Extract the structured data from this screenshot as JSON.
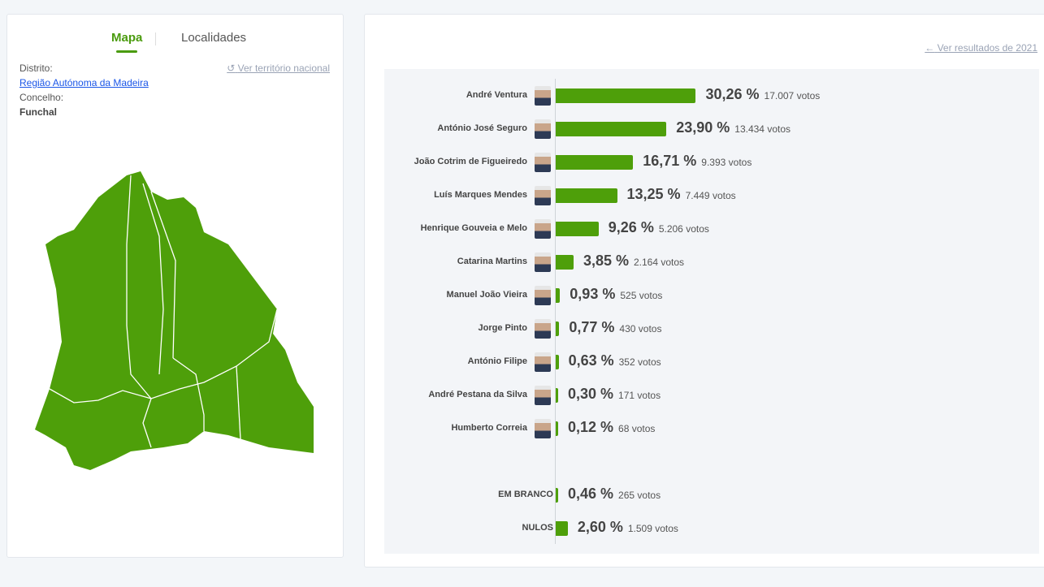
{
  "tabs": {
    "map": "Mapa",
    "localities": "Localidades"
  },
  "location": {
    "district_label": "Distrito:",
    "district": "Região Autónoma da Madeira",
    "municipality_label": "Concelho:",
    "municipality": "Funchal",
    "national_link": "Ver território nacional"
  },
  "results_link": "Ver resultados de 2021",
  "accent": "#4e9f0a",
  "results": [
    {
      "name": "André Ventura",
      "pct": "30,26 %",
      "value": 30.26,
      "votes": "17.007 votos"
    },
    {
      "name": "António José Seguro",
      "pct": "23,90 %",
      "value": 23.9,
      "votes": "13.434 votos"
    },
    {
      "name": "João Cotrim de Figueiredo",
      "pct": "16,71 %",
      "value": 16.71,
      "votes": "9.393 votos"
    },
    {
      "name": "Luís Marques Mendes",
      "pct": "13,25 %",
      "value": 13.25,
      "votes": "7.449 votos"
    },
    {
      "name": "Henrique Gouveia e Melo",
      "pct": "9,26 %",
      "value": 9.26,
      "votes": "5.206 votos"
    },
    {
      "name": "Catarina Martins",
      "pct": "3,85 %",
      "value": 3.85,
      "votes": "2.164 votos"
    },
    {
      "name": "Manuel João Vieira",
      "pct": "0,93 %",
      "value": 0.93,
      "votes": "525 votos"
    },
    {
      "name": "Jorge Pinto",
      "pct": "0,77 %",
      "value": 0.77,
      "votes": "430 votos"
    },
    {
      "name": "António Filipe",
      "pct": "0,63 %",
      "value": 0.63,
      "votes": "352 votos"
    },
    {
      "name": "André Pestana da Silva",
      "pct": "0,30 %",
      "value": 0.3,
      "votes": "171 votos"
    },
    {
      "name": "Humberto Correia",
      "pct": "0,12 %",
      "value": 0.12,
      "votes": "68 votos"
    }
  ],
  "other": [
    {
      "name": "EM BRANCO",
      "pct": "0,46 %",
      "value": 0.46,
      "votes": "265 votos"
    },
    {
      "name": "NULOS",
      "pct": "2,60 %",
      "value": 2.6,
      "votes": "1.509 votos"
    }
  ]
}
